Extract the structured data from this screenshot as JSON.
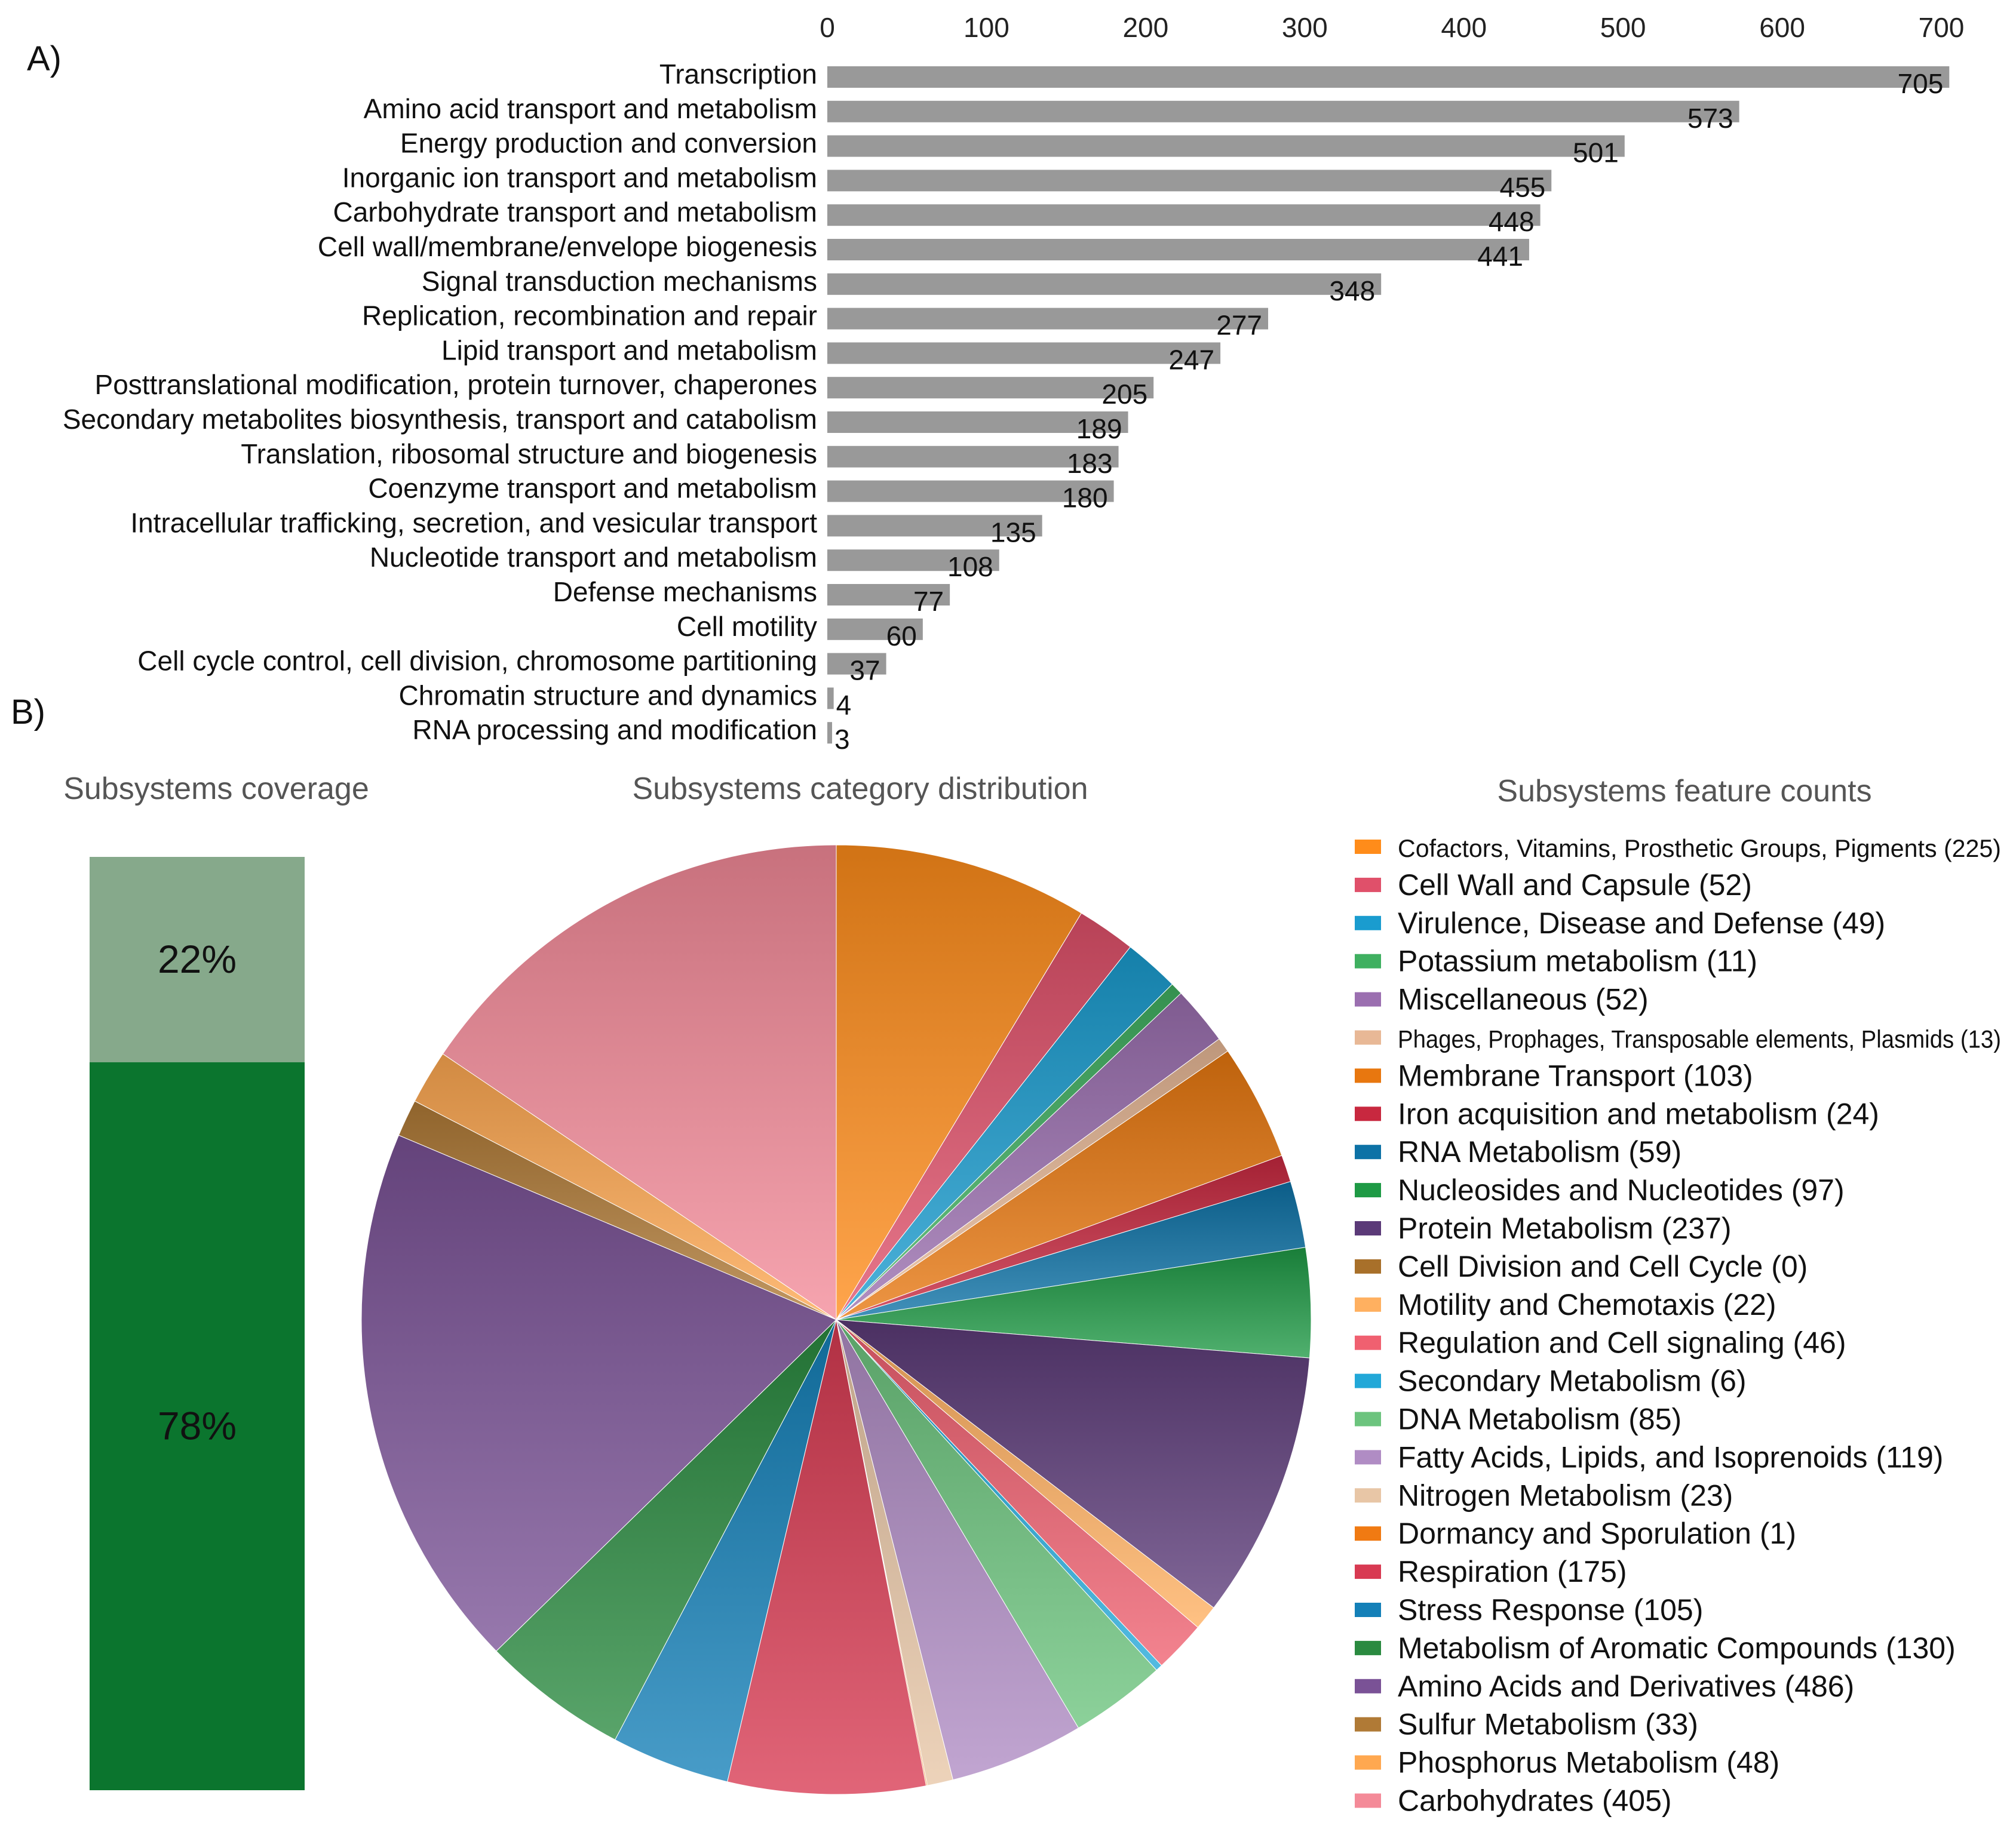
{
  "panel_labels": {
    "a": "A)",
    "b": "B)"
  },
  "chart_data": [
    {
      "type": "bar",
      "orientation": "horizontal",
      "title": "",
      "xlabel": "",
      "ylabel": "",
      "xlim": [
        0,
        700
      ],
      "xticks": [
        0,
        100,
        200,
        300,
        400,
        500,
        600,
        700
      ],
      "bar_color": "#999999",
      "axis_position": "top",
      "categories": [
        "Transcription",
        "Amino acid transport and metabolism",
        "Energy production and conversion",
        "Inorganic ion transport and metabolism",
        "Carbohydrate transport and metabolism",
        "Cell wall/membrane/envelope biogenesis",
        "Signal transduction mechanisms",
        "Replication, recombination and repair",
        "Lipid transport and metabolism",
        "Posttranslational modification, protein turnover, chaperones",
        "Secondary metabolites biosynthesis, transport and catabolism",
        "Translation, ribosomal structure and biogenesis",
        "Coenzyme transport and metabolism",
        "Intracellular trafficking, secretion, and vesicular transport",
        "Nucleotide transport and metabolism",
        "Defense mechanisms",
        "Cell motility",
        "Cell cycle control, cell division, chromosome partitioning",
        "Chromatin structure and dynamics",
        "RNA processing and modification"
      ],
      "values": [
        705,
        573,
        501,
        455,
        448,
        441,
        348,
        277,
        247,
        205,
        189,
        183,
        180,
        135,
        108,
        77,
        60,
        37,
        4,
        3
      ]
    },
    {
      "type": "bar",
      "stacked": true,
      "title": "Subsystems coverage",
      "segments": [
        {
          "label": "22%",
          "value": 22,
          "color": "#86a98b"
        },
        {
          "label": "78%",
          "value": 78,
          "color": "#0b752e"
        }
      ]
    },
    {
      "type": "pie",
      "title": "Subsystems category distribution",
      "start_angle_deg": 0,
      "direction": "clockwise",
      "slices": [
        {
          "name": "Cofactors, Vitamins, Prosthetic Groups, Pigments",
          "value": 225,
          "color": "#ff8c1a"
        },
        {
          "name": "Cell Wall and Capsule",
          "value": 52,
          "color": "#e0506a"
        },
        {
          "name": "Virulence, Disease and Defense",
          "value": 49,
          "color": "#1a9ccf"
        },
        {
          "name": "Potassium metabolism",
          "value": 11,
          "color": "#3fb060"
        },
        {
          "name": "Miscellaneous",
          "value": 52,
          "color": "#9b6fb0"
        },
        {
          "name": "Phages, Prophages, Transposable elements, Plasmids",
          "value": 13,
          "color": "#e8b896"
        },
        {
          "name": "Membrane Transport",
          "value": 103,
          "color": "#e8770f"
        },
        {
          "name": "Iron acquisition and metabolism",
          "value": 24,
          "color": "#c8283f"
        },
        {
          "name": "RNA Metabolism",
          "value": 59,
          "color": "#0d72a6"
        },
        {
          "name": "Nucleosides and Nucleotides",
          "value": 97,
          "color": "#1e9a45"
        },
        {
          "name": "Protein Metabolism",
          "value": 237,
          "color": "#5b3a78"
        },
        {
          "name": "Cell Division and Cell Cycle",
          "value": 0,
          "color": "#a8702a"
        },
        {
          "name": "Motility and Chemotaxis",
          "value": 22,
          "color": "#ffb060"
        },
        {
          "name": "Regulation and Cell signaling",
          "value": 46,
          "color": "#f06070"
        },
        {
          "name": "Secondary Metabolism",
          "value": 6,
          "color": "#22a8d8"
        },
        {
          "name": "DNA Metabolism",
          "value": 85,
          "color": "#6cc47e"
        },
        {
          "name": "Fatty Acids, Lipids, and Isoprenoids",
          "value": 119,
          "color": "#b08cc4"
        },
        {
          "name": "Nitrogen Metabolism",
          "value": 23,
          "color": "#e8c6a6"
        },
        {
          "name": "Dormancy and Sporulation",
          "value": 1,
          "color": "#f07a12"
        },
        {
          "name": "Respiration",
          "value": 175,
          "color": "#d83a52"
        },
        {
          "name": "Stress Response",
          "value": 105,
          "color": "#1480b8"
        },
        {
          "name": "Metabolism of Aromatic Compounds",
          "value": 130,
          "color": "#2a8a40"
        },
        {
          "name": "Amino Acids and Derivatives",
          "value": 486,
          "color": "#7a5296"
        },
        {
          "name": "Sulfur Metabolism",
          "value": 33,
          "color": "#b07a36"
        },
        {
          "name": "Phosphorus Metabolism",
          "value": 48,
          "color": "#ffa850"
        },
        {
          "name": "Carbohydrates",
          "value": 405,
          "color": "#f48a98"
        }
      ]
    },
    {
      "type": "legend",
      "title": "Subsystems feature counts",
      "entries": [
        {
          "label": "Cofactors, Vitamins, Prosthetic Groups, Pigments (225)",
          "color": "#ff8c1a",
          "condensed": true
        },
        {
          "label": "Cell Wall and Capsule (52)",
          "color": "#e0506a"
        },
        {
          "label": "Virulence, Disease and Defense (49)",
          "color": "#1a9ccf"
        },
        {
          "label": "Potassium metabolism (11)",
          "color": "#3fb060"
        },
        {
          "label": "Miscellaneous (52)",
          "color": "#9b6fb0"
        },
        {
          "label": "Phages, Prophages, Transposable elements, Plasmids (13)",
          "color": "#e8b896",
          "condensed": true
        },
        {
          "label": "Membrane Transport (103)",
          "color": "#e8770f"
        },
        {
          "label": "Iron acquisition and metabolism (24)",
          "color": "#c8283f"
        },
        {
          "label": "RNA Metabolism (59)",
          "color": "#0d72a6"
        },
        {
          "label": "Nucleosides and Nucleotides (97)",
          "color": "#1e9a45"
        },
        {
          "label": "Protein Metabolism (237)",
          "color": "#5b3a78"
        },
        {
          "label": "Cell Division and Cell Cycle (0)",
          "color": "#a8702a"
        },
        {
          "label": "Motility and Chemotaxis (22)",
          "color": "#ffb060"
        },
        {
          "label": "Regulation and Cell signaling (46)",
          "color": "#f06070"
        },
        {
          "label": "Secondary Metabolism (6)",
          "color": "#22a8d8"
        },
        {
          "label": "DNA Metabolism (85)",
          "color": "#6cc47e"
        },
        {
          "label": "Fatty Acids, Lipids, and Isoprenoids (119)",
          "color": "#b08cc4"
        },
        {
          "label": "Nitrogen Metabolism (23)",
          "color": "#e8c6a6"
        },
        {
          "label": "Dormancy and Sporulation (1)",
          "color": "#f07a12"
        },
        {
          "label": "Respiration (175)",
          "color": "#d83a52"
        },
        {
          "label": "Stress Response (105)",
          "color": "#1480b8"
        },
        {
          "label": "Metabolism of Aromatic Compounds (130)",
          "color": "#2a8a40"
        },
        {
          "label": "Amino Acids and Derivatives (486)",
          "color": "#7a5296"
        },
        {
          "label": "Sulfur Metabolism (33)",
          "color": "#b07a36"
        },
        {
          "label": "Phosphorus Metabolism (48)",
          "color": "#ffa850"
        },
        {
          "label": "Carbohydrates (405)",
          "color": "#f48a98"
        }
      ]
    }
  ]
}
